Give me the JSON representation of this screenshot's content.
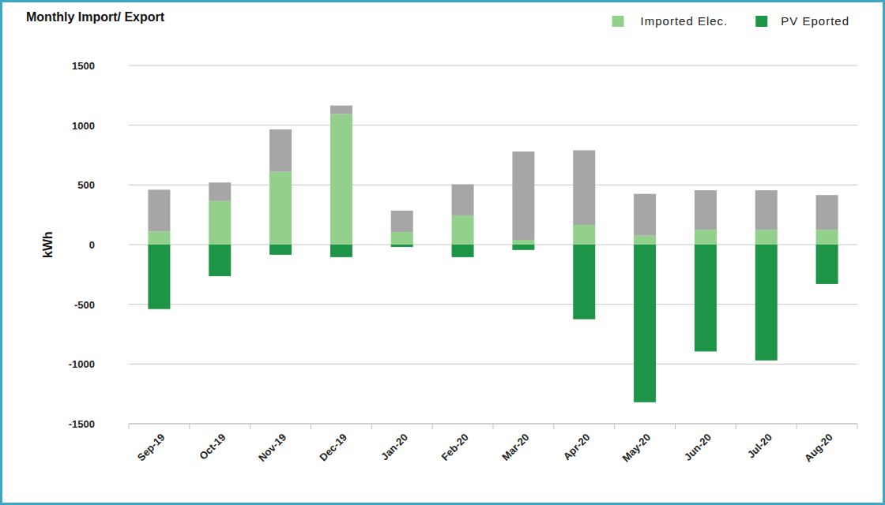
{
  "chart_data": {
    "type": "bar",
    "title": "Monthly Import/ Export",
    "y_label": "kWh",
    "categories": [
      "Sep-19",
      "Oct-19",
      "Nov-19",
      "Dec-19",
      "Jan-20",
      "Feb-20",
      "Mar-20",
      "Apr-20",
      "May-20",
      "Jun-20",
      "Jul-20",
      "Aug-20"
    ],
    "series": [
      {
        "name": "Imported Elec.",
        "color": "#92d08b",
        "values": [
          110,
          365,
          610,
          1095,
          105,
          245,
          40,
          165,
          75,
          125,
          125,
          125
        ]
      },
      {
        "color": "#a6a6a6",
        "values": [
          350,
          155,
          355,
          70,
          180,
          260,
          740,
          625,
          350,
          330,
          330,
          290
        ]
      },
      {
        "name": "PV Eported",
        "color": "#1e9447",
        "values": [
          -540,
          -265,
          -85,
          -105,
          -20,
          -105,
          -45,
          -625,
          -1320,
          -895,
          -970,
          -330
        ]
      }
    ],
    "stacked": true,
    "ylim": [
      -1500,
      1500
    ],
    "yticks": [
      -1500,
      -1000,
      -500,
      0,
      500,
      1000,
      1500
    ],
    "grid": true,
    "legend": "top-right"
  }
}
